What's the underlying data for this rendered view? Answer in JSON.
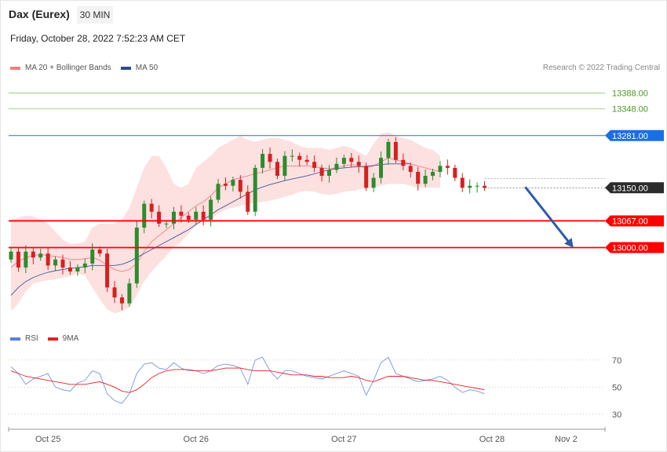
{
  "header": {
    "instrument": "Dax (Eurex)",
    "timeframe": "30 MIN",
    "datetime": "Friday, October 28, 2022 7:52:23 AM CET",
    "credit": "Research © 2022 Trading Central"
  },
  "legend": {
    "main": [
      {
        "label": "MA 20 + Bollinger Bands",
        "color": "#f08080"
      },
      {
        "label": "MA 50",
        "color": "#2a4f8f"
      }
    ],
    "rsi": [
      {
        "label": "RSI",
        "color": "#5b7fd9"
      },
      {
        "label": "9MA",
        "color": "#e82020"
      }
    ]
  },
  "colors": {
    "up": "#2e8b2e",
    "down": "#d62020",
    "band": "#fde0e0",
    "ma20": "#f08080",
    "ma50": "#3c5a9a",
    "support": "#ff0000",
    "resistance_thin": "#8fc46a",
    "resistance_blue": "#1a6ee6",
    "arrow": "#2a5ea8",
    "rsi": "#6a88e0",
    "rsi_ma": "#e82020"
  },
  "chart_data": [
    {
      "type": "candlestick",
      "ylim": [
        12810,
        13440
      ],
      "x_ticks": [
        "Oct 25",
        "Oct 26",
        "Oct 27",
        "Oct 28",
        "Nov 2"
      ],
      "x_tick_positions": [
        5,
        25,
        45,
        65,
        73
      ],
      "levels": [
        {
          "value": 13388.0,
          "label": "13388.00",
          "style": "resistance_thin"
        },
        {
          "value": 13348.0,
          "label": "13348.00",
          "style": "resistance_thin"
        },
        {
          "value": 13281.0,
          "label": "13281.00",
          "style": "resistance_blue"
        },
        {
          "value": 13150.0,
          "label": "13150.00",
          "style": "last"
        },
        {
          "value": 13067.0,
          "label": "13067.00",
          "style": "support"
        },
        {
          "value": 13000.0,
          "label": "13000.00",
          "style": "support"
        }
      ],
      "arrow": {
        "from": [
          69.5,
          13152
        ],
        "to": [
          76,
          13000
        ]
      },
      "close": [
        12990,
        12950,
        12990,
        12975,
        12985,
        12955,
        12970,
        12950,
        12940,
        12950,
        12960,
        12995,
        12985,
        12900,
        12875,
        12860,
        12910,
        13050,
        13110,
        13090,
        13060,
        13060,
        13090,
        13080,
        13070,
        13090,
        13070,
        13120,
        13160,
        13155,
        13170,
        13140,
        13090,
        13200,
        13235,
        13215,
        13180,
        13230,
        13230,
        13220,
        13215,
        13200,
        13180,
        13195,
        13210,
        13225,
        13215,
        13205,
        13150,
        13175,
        13225,
        13265,
        13220,
        13205,
        13190,
        13160,
        13180,
        13190,
        13205,
        13200,
        13175,
        13150,
        13155,
        13155,
        13150
      ],
      "bb_upper": [
        13070,
        13075,
        13080,
        13078,
        13070,
        13060,
        13040,
        13020,
        13010,
        13010,
        13015,
        13050,
        13060,
        13060,
        13060,
        13070,
        13100,
        13150,
        13200,
        13230,
        13230,
        13200,
        13160,
        13150,
        13160,
        13200,
        13215,
        13230,
        13250,
        13260,
        13270,
        13280,
        13270,
        13265,
        13270,
        13275,
        13275,
        13270,
        13265,
        13255,
        13250,
        13250,
        13250,
        13245,
        13250,
        13255,
        13250,
        13240,
        13230,
        13260,
        13285,
        13290,
        13280,
        13275,
        13270,
        13260,
        13250,
        13245,
        13230
      ],
      "bb_lower": [
        12840,
        12860,
        12890,
        12910,
        12915,
        12918,
        12920,
        12925,
        12928,
        12935,
        12930,
        12900,
        12870,
        12845,
        12835,
        12840,
        12850,
        12880,
        12915,
        12940,
        12960,
        12980,
        13000,
        13015,
        13035,
        13055,
        13065,
        13070,
        13085,
        13095,
        13100,
        13105,
        13110,
        13112,
        13115,
        13118,
        13122,
        13128,
        13132,
        13140,
        13142,
        13140,
        13135,
        13132,
        13135,
        13140,
        13142,
        13145,
        13148,
        13150,
        13155,
        13160,
        13160,
        13160,
        13155,
        13150,
        13150,
        13150,
        13150
      ],
      "ma20": [
        12950,
        12965,
        12975,
        12980,
        12982,
        12980,
        12978,
        12975,
        12970,
        12970,
        12972,
        12975,
        12968,
        12955,
        12945,
        12940,
        12945,
        12960,
        12990,
        13015,
        13030,
        13045,
        13060,
        13075,
        13090,
        13105,
        13115,
        13130,
        13150,
        13160,
        13170,
        13175,
        13180,
        13185,
        13190,
        13195,
        13200,
        13205,
        13205,
        13205,
        13205,
        13203,
        13200,
        13198,
        13200,
        13205,
        13208,
        13205,
        13200,
        13205,
        13215,
        13225,
        13220,
        13215,
        13210,
        13205,
        13200,
        13195,
        13190
      ],
      "ma50": [
        12880,
        12900,
        12915,
        12925,
        12932,
        12938,
        12942,
        12945,
        12948,
        12950,
        12952,
        12955,
        12955,
        12955,
        12955,
        12958,
        12965,
        12975,
        12985,
        12995,
        13005,
        13015,
        13025,
        13035,
        13045,
        13058,
        13070,
        13082,
        13095,
        13105,
        13115,
        13125,
        13135,
        13145,
        13152,
        13158,
        13163,
        13168,
        13172,
        13176,
        13180,
        13185,
        13190,
        13195,
        13198,
        13200,
        13202,
        13203,
        13204,
        13206,
        13208,
        13210,
        13210,
        13210,
        13210
      ]
    },
    {
      "type": "line",
      "ylim": [
        20,
        78
      ],
      "y_ticks": [
        70,
        50,
        30
      ],
      "rsi": [
        65,
        60,
        52,
        56,
        58,
        60,
        50,
        48,
        47,
        53,
        55,
        62,
        60,
        45,
        40,
        38,
        45,
        60,
        67,
        68,
        64,
        63,
        68,
        64,
        62,
        62,
        60,
        62,
        66,
        67,
        66,
        64,
        52,
        70,
        72,
        62,
        56,
        62,
        62,
        60,
        58,
        57,
        56,
        58,
        60,
        62,
        60,
        58,
        44,
        55,
        68,
        72,
        60,
        58,
        56,
        54,
        55,
        56,
        58,
        55,
        50,
        46,
        48,
        47,
        45
      ],
      "rsi_ma": [
        62,
        60,
        58,
        57,
        56,
        55,
        54,
        53,
        52,
        52,
        52,
        53,
        54,
        52,
        50,
        47,
        46,
        48,
        52,
        57,
        60,
        62,
        63,
        63,
        63,
        62,
        62,
        62,
        63,
        64,
        64,
        64,
        63,
        62,
        62,
        62,
        61,
        60,
        59,
        59,
        59,
        58,
        58,
        57,
        57,
        57,
        58,
        57,
        55,
        54,
        56,
        58,
        58,
        58,
        57,
        56,
        55,
        55,
        54,
        53,
        52,
        51,
        50,
        49,
        48
      ]
    }
  ]
}
